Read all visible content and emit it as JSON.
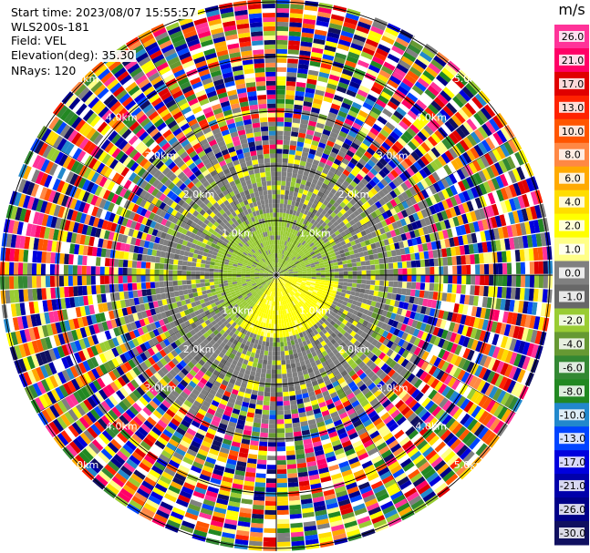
{
  "header": {
    "start_time": "Start time: 2023/08/07 15:55:57",
    "instrument": "WLS200s-181",
    "field": "Field: VEL",
    "elevation": "Elevation(deg): 35.30",
    "nrays": "NRays: 120"
  },
  "colorbar": {
    "unit": "m/s",
    "ticks": [
      "26.0",
      "21.0",
      "17.0",
      "13.0",
      "10.0",
      "8.0",
      "6.0",
      "4.0",
      "2.0",
      "1.0",
      "0.0",
      "-1.0",
      "-2.0",
      "-4.0",
      "-6.0",
      "-8.0",
      "-10.0",
      "-13.0",
      "-17.0",
      "-21.0",
      "-26.0",
      "-30.0"
    ],
    "colors": [
      "#ff3399",
      "#ff0066",
      "#e00000",
      "#ff2200",
      "#ff5500",
      "#ff8844",
      "#ffaa00",
      "#ffdd00",
      "#ffff00",
      "#ffff88",
      "#808080",
      "#686868",
      "#99cc33",
      "#669933",
      "#338833",
      "#228822",
      "#2288cc",
      "#0044ff",
      "#0000dd",
      "#0000aa",
      "#000088",
      "#101060"
    ]
  },
  "chart_data": {
    "type": "heatmap",
    "projection": "polar PPI",
    "field": "VEL",
    "unit": "m/s",
    "n_rays": 120,
    "elevation_deg": 35.3,
    "range_ring_labels": [
      "1.0km",
      "2.0km",
      "3.0km",
      "4.0km",
      "5.0km"
    ],
    "color_scale_min": -30.0,
    "color_scale_max": 26.0
  }
}
